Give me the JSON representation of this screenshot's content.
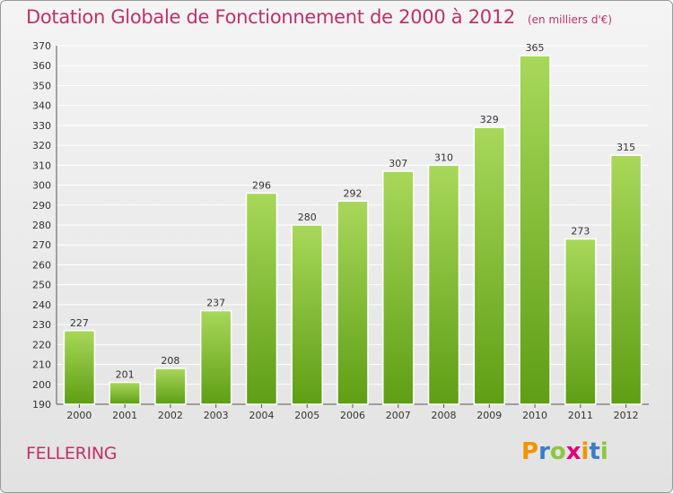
{
  "header": {
    "title": "Dotation Globale de Fonctionnement de 2000 à 2012",
    "unit": "(en milliers d'€)"
  },
  "commune": "FELLERING",
  "brand": {
    "letters": [
      "P",
      "r",
      "o",
      "x",
      "i",
      "t",
      "i"
    ],
    "colors": [
      "#f29400",
      "#3a7dc9",
      "#8cc63f",
      "#e2007a",
      "#f29400",
      "#3a7dc9",
      "#8cc63f"
    ]
  },
  "colors": {
    "bar_top": "#a8d85a",
    "bar_bottom": "#5e9e14",
    "grid": "#ffffff",
    "title": "#c0306a"
  },
  "chart_data": {
    "type": "bar",
    "title": "Dotation Globale de Fonctionnement de 2000 à 2012",
    "subtitle": "(en milliers d'€)",
    "categories": [
      "2000",
      "2001",
      "2002",
      "2003",
      "2004",
      "2005",
      "2006",
      "2007",
      "2008",
      "2009",
      "2010",
      "2011",
      "2012"
    ],
    "values": [
      227,
      201,
      208,
      237,
      296,
      280,
      292,
      307,
      310,
      329,
      365,
      273,
      315
    ],
    "ylim": [
      190,
      370
    ],
    "ytick_step": 10,
    "grid": true,
    "xlabel": "",
    "ylabel": ""
  }
}
